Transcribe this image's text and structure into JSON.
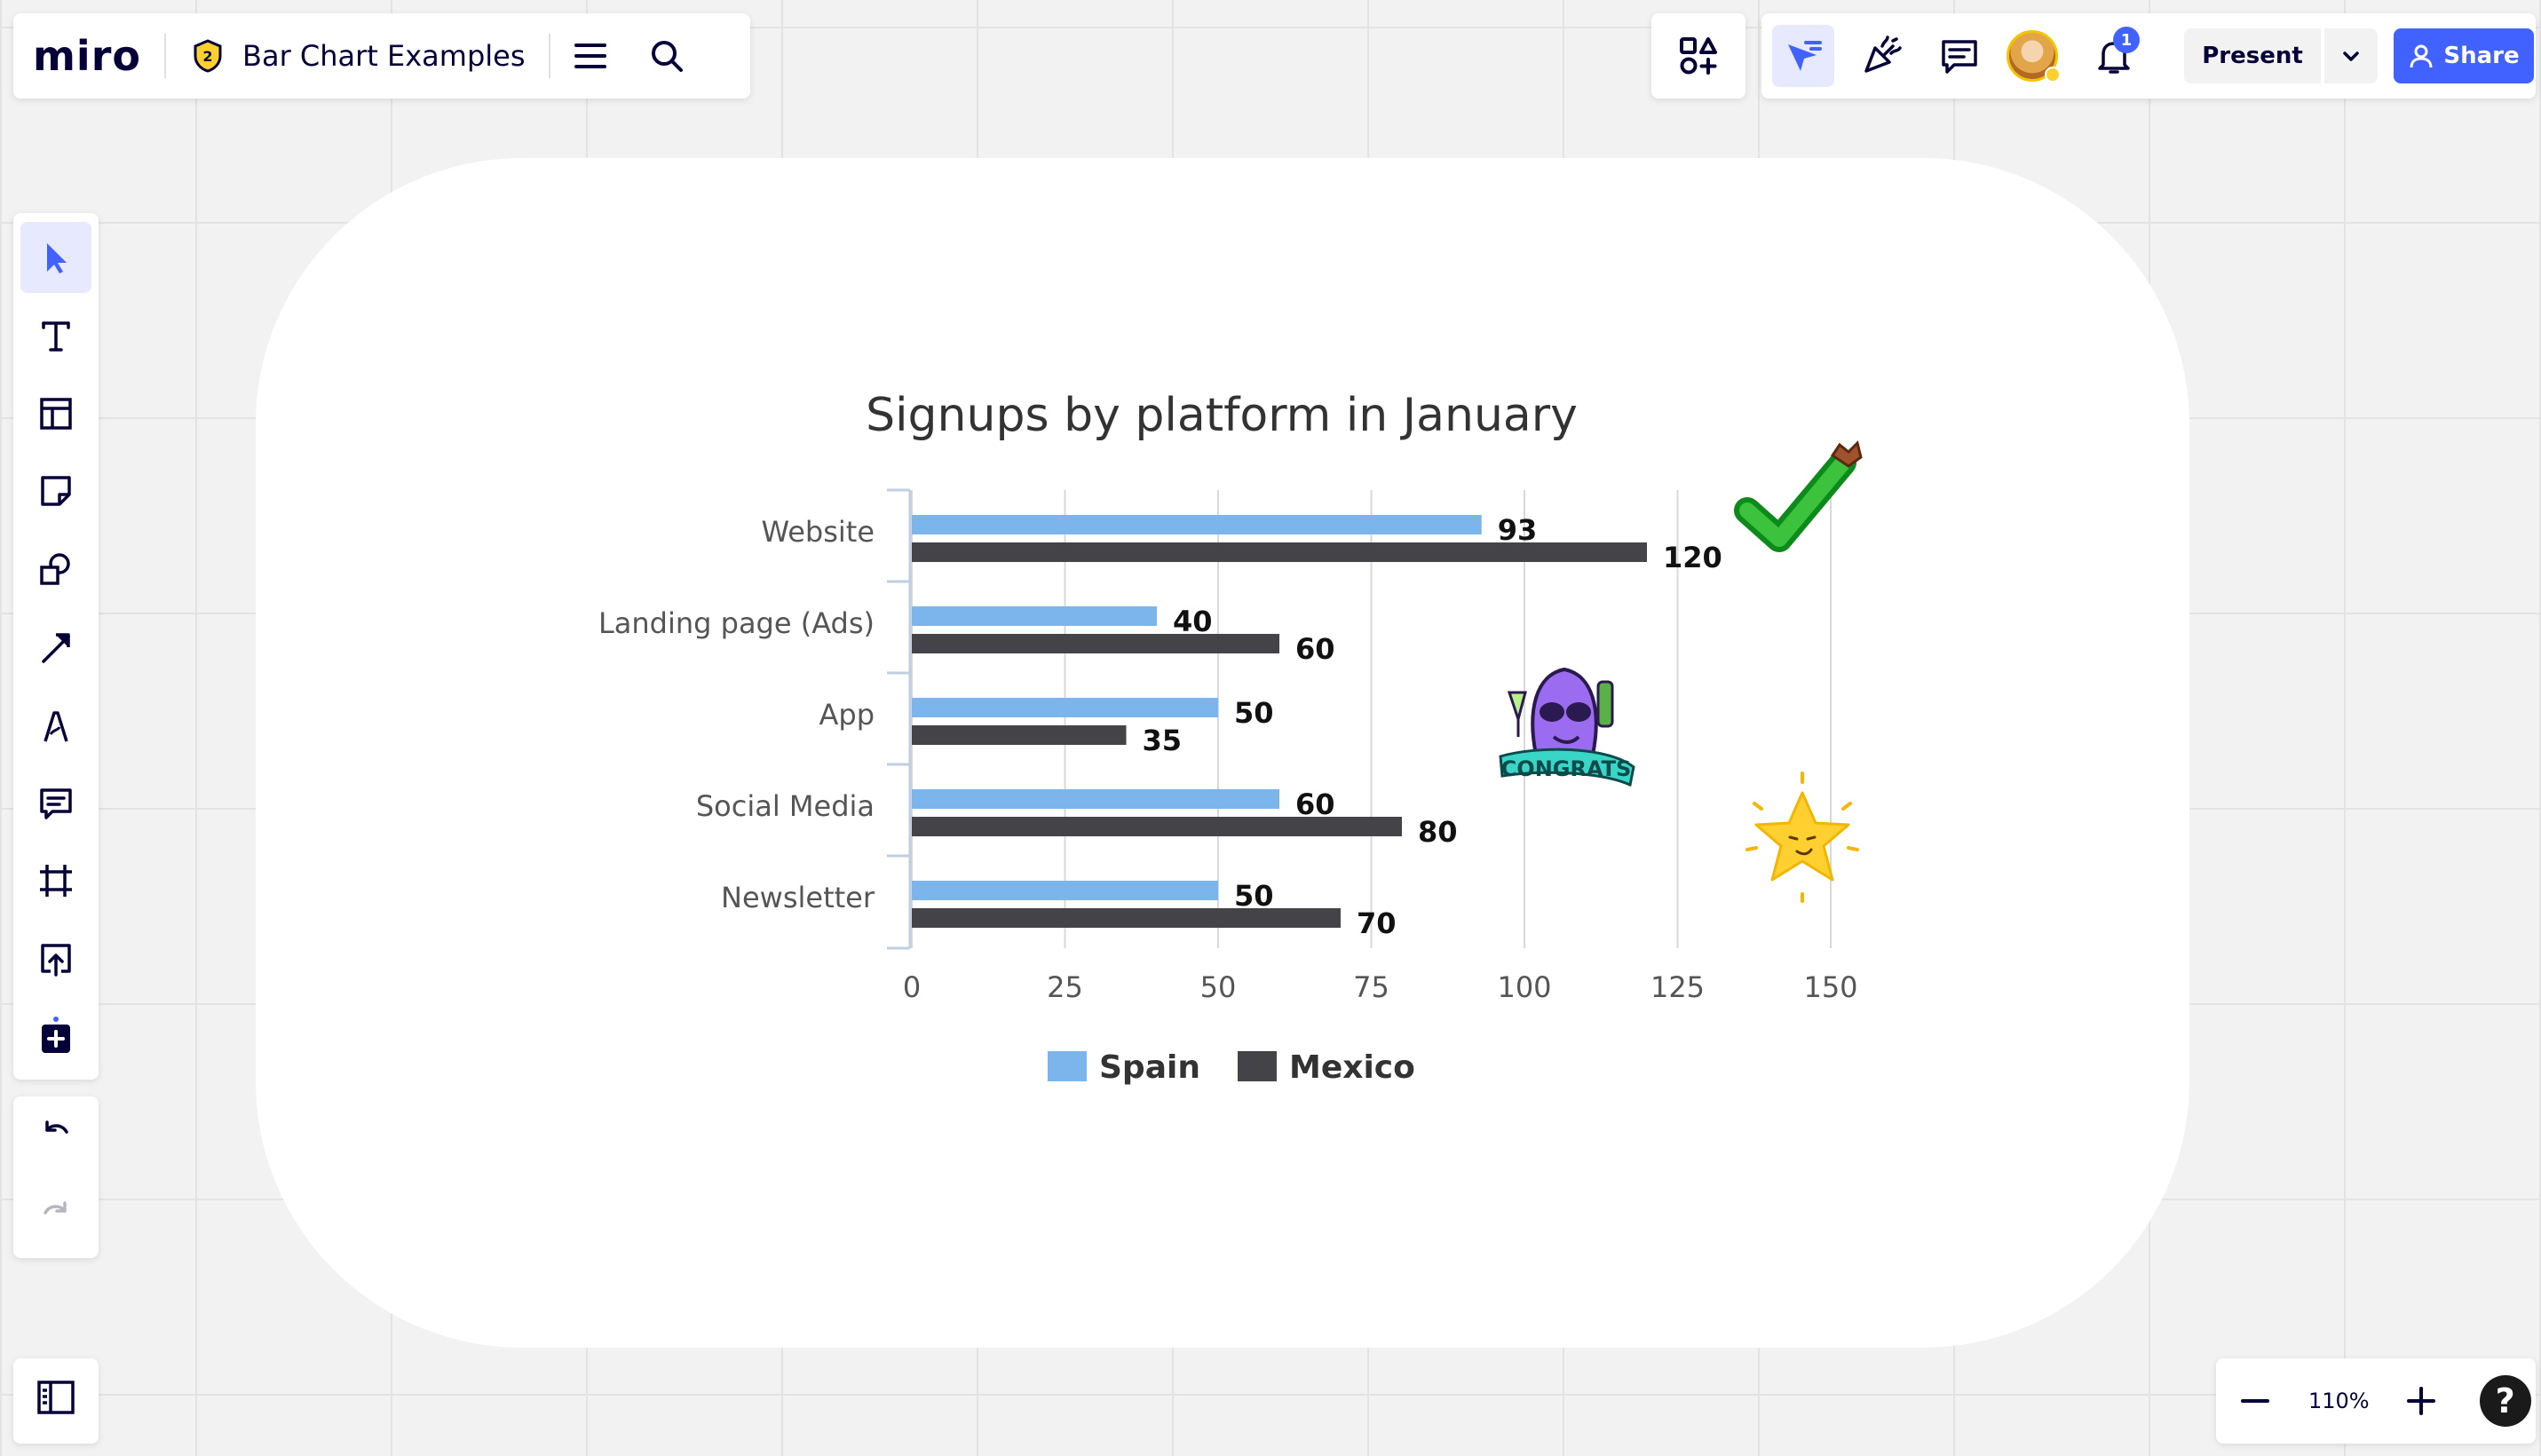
{
  "app": {
    "logo_text": "miro",
    "board_title": "Bar Chart Examples",
    "plan_badge": "2"
  },
  "collab": {
    "notification_count": "1",
    "present_label": "Present",
    "share_label": "Share"
  },
  "zoom": {
    "level": "110%",
    "help_label": "?"
  },
  "colors": {
    "accent": "#4262ff",
    "spain": "#7cb5ec",
    "mexico": "#434348"
  },
  "icons": {
    "toolbar": [
      "select-icon",
      "text-icon",
      "template-icon",
      "sticky-note-icon",
      "shapes-icon",
      "connector-arrow-icon",
      "pen-icon",
      "comment-icon",
      "frame-icon",
      "upload-icon",
      "more-apps-icon"
    ],
    "history": [
      "undo-icon",
      "redo-icon"
    ]
  },
  "chart_data": {
    "type": "bar",
    "orientation": "horizontal",
    "title": "Signups by platform in January",
    "categories": [
      "Website",
      "Landing page (Ads)",
      "App",
      "Social Media",
      "Newsletter"
    ],
    "series": [
      {
        "name": "Spain",
        "values": [
          93,
          40,
          50,
          60,
          50
        ]
      },
      {
        "name": "Mexico",
        "values": [
          120,
          60,
          35,
          80,
          70
        ]
      }
    ],
    "xticks": [
      "0",
      "25",
      "50",
      "75",
      "100",
      "125",
      "150"
    ],
    "xlim": [
      0,
      150
    ],
    "grid": true,
    "legend": "bottom",
    "data_labels": true
  },
  "stickers": {
    "congrats_text": "CONGRATS"
  }
}
